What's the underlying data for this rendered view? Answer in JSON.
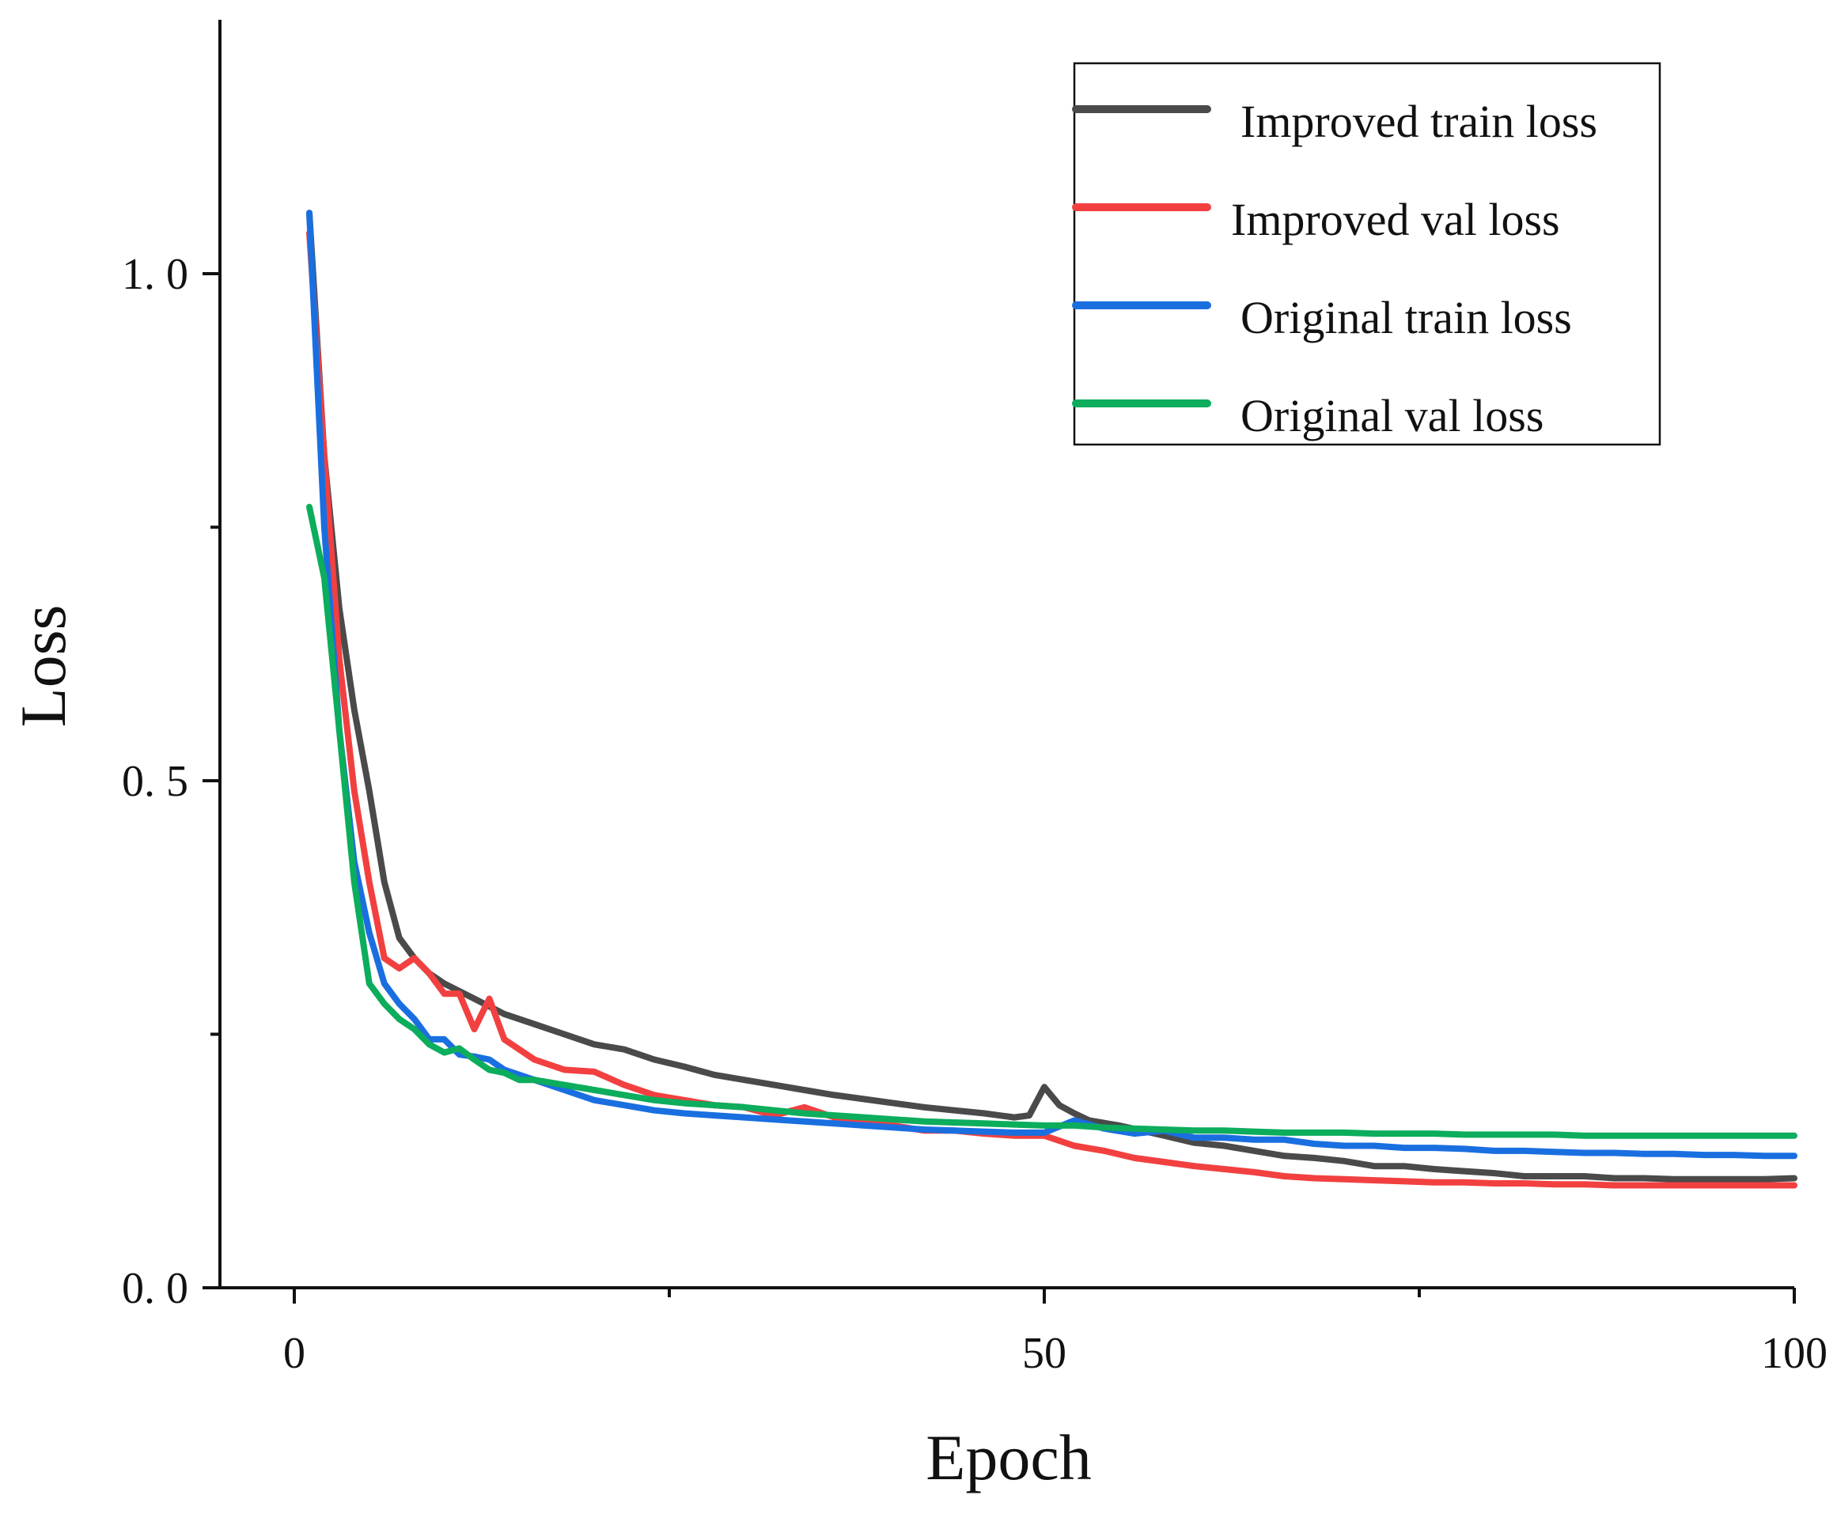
{
  "chart_data": {
    "type": "line",
    "title": "",
    "xlabel": "Epoch",
    "ylabel": "Loss",
    "xlim": [
      -5,
      100
    ],
    "ylim": [
      0,
      1.25
    ],
    "x_ticks": [
      0,
      50,
      100
    ],
    "x_tick_labels": [
      "0",
      "50",
      "100"
    ],
    "x_minor_ticks": [
      25,
      75
    ],
    "y_ticks": [
      0.0,
      0.5,
      1.0
    ],
    "y_tick_labels": [
      "0. 0",
      "0. 5",
      "1. 0"
    ],
    "y_minor_ticks": [
      0.25,
      0.75
    ],
    "grid": false,
    "legend_position": "top-right",
    "series": [
      {
        "name": "Improved train loss",
        "color": "#4a4a4a",
        "x": [
          1,
          2,
          3,
          4,
          5,
          6,
          7,
          8,
          9,
          10,
          12,
          14,
          16,
          18,
          20,
          22,
          24,
          26,
          28,
          30,
          32,
          34,
          36,
          38,
          40,
          42,
          44,
          46,
          48,
          49,
          50,
          51,
          52,
          53,
          55,
          58,
          60,
          62,
          64,
          66,
          68,
          70,
          72,
          74,
          76,
          78,
          80,
          82,
          84,
          86,
          88,
          90,
          92,
          94,
          96,
          98,
          100
        ],
        "y": [
          1.06,
          0.82,
          0.67,
          0.57,
          0.49,
          0.4,
          0.345,
          0.325,
          0.31,
          0.3,
          0.285,
          0.27,
          0.26,
          0.25,
          0.24,
          0.235,
          0.225,
          0.218,
          0.21,
          0.205,
          0.2,
          0.195,
          0.19,
          0.186,
          0.182,
          0.178,
          0.175,
          0.172,
          0.168,
          0.17,
          0.198,
          0.18,
          0.172,
          0.165,
          0.16,
          0.15,
          0.143,
          0.14,
          0.135,
          0.13,
          0.128,
          0.125,
          0.12,
          0.12,
          0.117,
          0.115,
          0.113,
          0.11,
          0.11,
          0.11,
          0.108,
          0.108,
          0.107,
          0.107,
          0.107,
          0.107,
          0.108
        ]
      },
      {
        "name": "Improved val loss",
        "color": "#f24040",
        "x": [
          1,
          2,
          3,
          4,
          5,
          6,
          7,
          8,
          9,
          10,
          11,
          12,
          13,
          14,
          15,
          16,
          18,
          20,
          22,
          24,
          26,
          28,
          30,
          32,
          34,
          36,
          38,
          40,
          42,
          44,
          46,
          48,
          50,
          52,
          54,
          56,
          58,
          60,
          62,
          64,
          66,
          68,
          70,
          72,
          74,
          76,
          78,
          80,
          82,
          84,
          86,
          88,
          90,
          92,
          94,
          96,
          98,
          100
        ],
        "y": [
          1.04,
          0.82,
          0.62,
          0.49,
          0.4,
          0.325,
          0.315,
          0.325,
          0.31,
          0.29,
          0.29,
          0.255,
          0.285,
          0.245,
          0.235,
          0.225,
          0.215,
          0.213,
          0.2,
          0.19,
          0.185,
          0.18,
          0.178,
          0.17,
          0.178,
          0.168,
          0.162,
          0.16,
          0.155,
          0.155,
          0.152,
          0.15,
          0.15,
          0.14,
          0.135,
          0.128,
          0.124,
          0.12,
          0.117,
          0.114,
          0.11,
          0.108,
          0.107,
          0.106,
          0.105,
          0.104,
          0.104,
          0.103,
          0.103,
          0.102,
          0.102,
          0.101,
          0.101,
          0.101,
          0.101,
          0.101,
          0.101,
          0.101
        ]
      },
      {
        "name": "Original train loss",
        "color": "#1a6fe0",
        "x": [
          1,
          2,
          3,
          4,
          5,
          6,
          7,
          8,
          9,
          10,
          11,
          12,
          13,
          14,
          15,
          16,
          18,
          20,
          22,
          24,
          26,
          28,
          30,
          32,
          34,
          36,
          38,
          40,
          42,
          44,
          46,
          48,
          50,
          52,
          54,
          56,
          58,
          60,
          62,
          64,
          66,
          68,
          70,
          72,
          74,
          76,
          78,
          80,
          82,
          84,
          86,
          88,
          90,
          92,
          94,
          96,
          98,
          100
        ],
        "y": [
          1.06,
          0.75,
          0.55,
          0.42,
          0.35,
          0.3,
          0.28,
          0.265,
          0.245,
          0.245,
          0.23,
          0.228,
          0.225,
          0.215,
          0.21,
          0.205,
          0.195,
          0.185,
          0.18,
          0.175,
          0.172,
          0.17,
          0.168,
          0.166,
          0.164,
          0.162,
          0.16,
          0.158,
          0.156,
          0.155,
          0.154,
          0.153,
          0.153,
          0.165,
          0.157,
          0.152,
          0.155,
          0.148,
          0.148,
          0.146,
          0.146,
          0.142,
          0.14,
          0.14,
          0.138,
          0.138,
          0.137,
          0.135,
          0.135,
          0.134,
          0.133,
          0.133,
          0.132,
          0.132,
          0.131,
          0.131,
          0.13,
          0.13
        ]
      },
      {
        "name": "Original val loss",
        "color": "#0cad5c",
        "x": [
          1,
          2,
          3,
          4,
          5,
          6,
          7,
          8,
          9,
          10,
          11,
          12,
          13,
          14,
          15,
          16,
          18,
          20,
          22,
          24,
          26,
          28,
          30,
          32,
          34,
          36,
          38,
          40,
          42,
          44,
          46,
          48,
          50,
          52,
          54,
          56,
          58,
          60,
          62,
          64,
          66,
          68,
          70,
          72,
          74,
          76,
          78,
          80,
          82,
          84,
          86,
          88,
          90,
          92,
          94,
          96,
          98,
          100
        ],
        "y": [
          0.77,
          0.7,
          0.55,
          0.4,
          0.3,
          0.28,
          0.265,
          0.255,
          0.24,
          0.232,
          0.236,
          0.225,
          0.215,
          0.212,
          0.205,
          0.205,
          0.2,
          0.195,
          0.19,
          0.185,
          0.182,
          0.18,
          0.178,
          0.175,
          0.172,
          0.17,
          0.168,
          0.166,
          0.164,
          0.163,
          0.162,
          0.161,
          0.16,
          0.16,
          0.158,
          0.157,
          0.156,
          0.155,
          0.155,
          0.154,
          0.153,
          0.153,
          0.153,
          0.152,
          0.152,
          0.152,
          0.151,
          0.151,
          0.151,
          0.151,
          0.15,
          0.15,
          0.15,
          0.15,
          0.15,
          0.15,
          0.15,
          0.15
        ]
      }
    ]
  }
}
